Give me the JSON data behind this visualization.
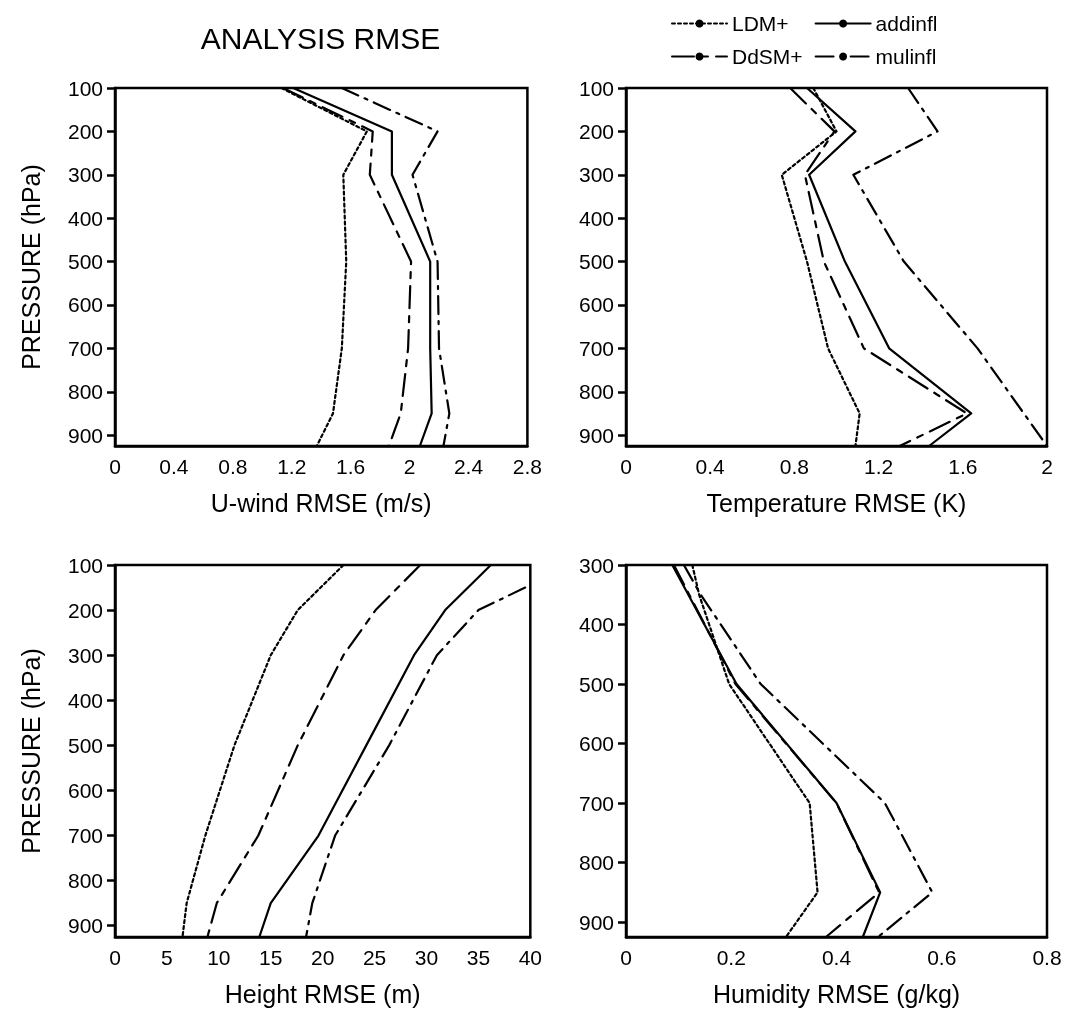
{
  "chart_data": [
    {
      "type": "line",
      "title": "ANALYSIS RMSE",
      "xlabel": "U-wind RMSE (m/s)",
      "ylabel": "PRESSURE (hPa)",
      "xlim": [
        0,
        2.8
      ],
      "xticks": [
        0,
        0.4,
        0.8,
        1.2,
        1.6,
        2,
        2.4,
        2.8
      ],
      "ylim": [
        925,
        100
      ],
      "yticks": [
        100,
        200,
        300,
        400,
        500,
        600,
        700,
        800,
        900
      ],
      "grid": false,
      "legend": false,
      "marker": "none",
      "series": [
        {
          "color": "#000000",
          "line_style": "dotted",
          "x": [
            1.13,
            1.71,
            1.55,
            1.57,
            1.54,
            1.48,
            1.37
          ],
          "values": [
            100,
            200,
            300,
            500,
            700,
            850,
            925
          ]
        },
        {
          "color": "#000000",
          "line_style": "dashed",
          "x": [
            1.14,
            1.75,
            1.73,
            2.01,
            1.99,
            1.94,
            1.86
          ],
          "values": [
            100,
            200,
            300,
            500,
            700,
            850,
            925
          ]
        },
        {
          "color": "#000000",
          "line_style": "solid",
          "x": [
            1.21,
            1.88,
            1.88,
            2.14,
            2.14,
            2.15,
            2.07
          ],
          "values": [
            100,
            200,
            300,
            500,
            700,
            850,
            925
          ]
        },
        {
          "color": "#000000",
          "line_style": "dashdot",
          "x": [
            1.54,
            2.19,
            2.02,
            2.19,
            2.2,
            2.27,
            2.23
          ],
          "values": [
            100,
            200,
            300,
            500,
            700,
            850,
            925
          ]
        }
      ]
    },
    {
      "type": "line",
      "xlabel": "Temperature RMSE (K)",
      "xlim": [
        0,
        2
      ],
      "xticks": [
        0,
        0.4,
        0.8,
        1.2,
        1.6,
        2
      ],
      "ylim": [
        925,
        100
      ],
      "yticks": [
        100,
        200,
        300,
        400,
        500,
        600,
        700,
        800,
        900
      ],
      "grid": false,
      "legend": "top",
      "marker": "none",
      "series": [
        {
          "name": "LDM+",
          "color": "#000000",
          "line_style": "dotted",
          "x": [
            0.89,
            1.0,
            0.74,
            0.86,
            0.96,
            1.11,
            1.09
          ],
          "values": [
            100,
            200,
            300,
            500,
            700,
            850,
            925
          ]
        },
        {
          "name": "DdSM+",
          "color": "#000000",
          "line_style": "dashed",
          "x": [
            0.78,
            0.99,
            0.85,
            0.94,
            1.13,
            1.62,
            1.3
          ],
          "values": [
            100,
            200,
            300,
            500,
            700,
            850,
            925
          ]
        },
        {
          "name": "addinfl",
          "color": "#000000",
          "line_style": "solid",
          "x": [
            0.86,
            1.09,
            0.87,
            1.04,
            1.25,
            1.64,
            1.44
          ],
          "values": [
            100,
            200,
            300,
            500,
            700,
            850,
            925
          ]
        },
        {
          "name": "mulinfl",
          "color": "#000000",
          "line_style": "dashdot",
          "x": [
            1.34,
            1.48,
            1.08,
            1.32,
            1.67,
            1.89,
            2.0
          ],
          "values": [
            100,
            200,
            300,
            500,
            700,
            850,
            925
          ]
        }
      ]
    },
    {
      "type": "line",
      "xlabel": "Height RMSE (m)",
      "ylabel": "PRESSURE (hPa)",
      "xlim": [
        0,
        40
      ],
      "xticks": [
        0,
        5,
        10,
        15,
        20,
        25,
        30,
        35,
        40
      ],
      "ylim": [
        925,
        100
      ],
      "yticks": [
        100,
        200,
        300,
        400,
        500,
        600,
        700,
        800,
        900
      ],
      "grid": false,
      "legend": false,
      "marker": "none",
      "series": [
        {
          "color": "#000000",
          "line_style": "dotted",
          "x": [
            22.0,
            17.6,
            15.0,
            11.5,
            8.7,
            6.9,
            6.5
          ],
          "values": [
            100,
            200,
            300,
            500,
            700,
            850,
            925
          ]
        },
        {
          "color": "#000000",
          "line_style": "dashed",
          "x": [
            29.4,
            25.1,
            22.0,
            17.6,
            13.8,
            9.8,
            8.9
          ],
          "values": [
            100,
            200,
            300,
            500,
            700,
            850,
            925
          ]
        },
        {
          "color": "#000000",
          "line_style": "solid",
          "x": [
            36.2,
            31.8,
            28.8,
            24.2,
            19.6,
            15.0,
            13.9
          ],
          "values": [
            100,
            200,
            300,
            500,
            700,
            850,
            925
          ]
        },
        {
          "color": "#000000",
          "line_style": "dashdot",
          "x": [
            39.5,
            35.0,
            31.0,
            26.4,
            21.2,
            19.0,
            18.4
          ],
          "values": [
            150,
            200,
            300,
            500,
            700,
            850,
            925
          ]
        }
      ]
    },
    {
      "type": "line",
      "xlabel": "Humidity RMSE (g/kg)",
      "xlim": [
        0,
        0.8
      ],
      "xticks": [
        0,
        0.2,
        0.4,
        0.6,
        0.8
      ],
      "ylim": [
        925,
        300
      ],
      "yticks": [
        300,
        400,
        500,
        600,
        700,
        800,
        900
      ],
      "grid": false,
      "legend": false,
      "marker": "none",
      "series": [
        {
          "color": "#000000",
          "line_style": "dotted",
          "x": [
            0.126,
            0.139,
            0.196,
            0.349,
            0.364,
            0.304
          ],
          "values": [
            300,
            350,
            500,
            700,
            850,
            925
          ]
        },
        {
          "color": "#000000",
          "line_style": "dashed",
          "x": [
            0.091,
            0.208,
            0.4,
            0.481,
            0.38
          ],
          "values": [
            300,
            500,
            700,
            850,
            925
          ]
        },
        {
          "color": "#000000",
          "line_style": "solid",
          "x": [
            0.088,
            0.21,
            0.4,
            0.483,
            0.45
          ],
          "values": [
            300,
            500,
            700,
            850,
            925
          ]
        },
        {
          "color": "#000000",
          "line_style": "dashdot",
          "x": [
            0.11,
            0.142,
            0.256,
            0.492,
            0.582,
            0.479
          ],
          "values": [
            300,
            350,
            500,
            700,
            850,
            925
          ]
        }
      ]
    }
  ]
}
